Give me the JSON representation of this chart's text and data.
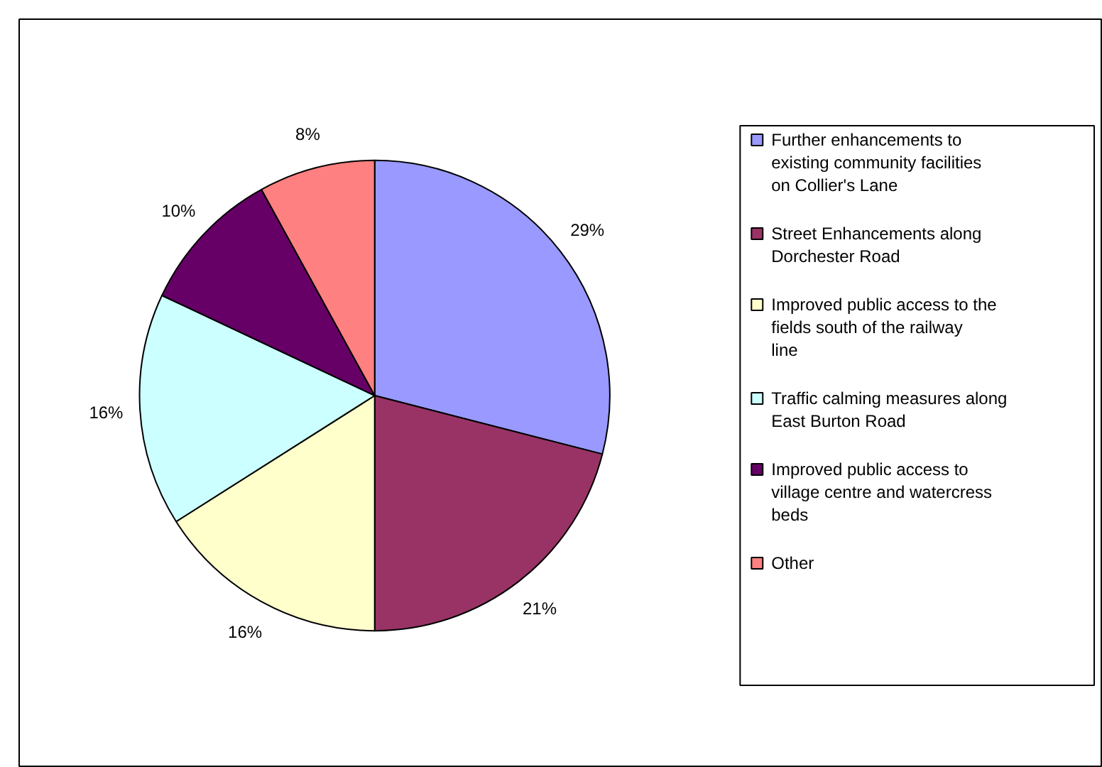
{
  "chart_data": {
    "type": "pie",
    "categories": [
      "Further enhancements to existing community facilities on Collier's Lane",
      "Street Enhancements along Dorchester Road",
      "Improved public access to the fields south of the railway line",
      "Traffic calming measures along East Burton Road",
      "Improved public access to village centre and watercress beds",
      "Other"
    ],
    "values": [
      29,
      21,
      16,
      16,
      10,
      8
    ],
    "colors": [
      "#9999ff",
      "#993366",
      "#ffffcc",
      "#ccffff",
      "#660066",
      "#ff8080"
    ],
    "value_labels": [
      "29%",
      "21%",
      "16%",
      "16%",
      "10%",
      "8%"
    ],
    "legend": "right"
  }
}
